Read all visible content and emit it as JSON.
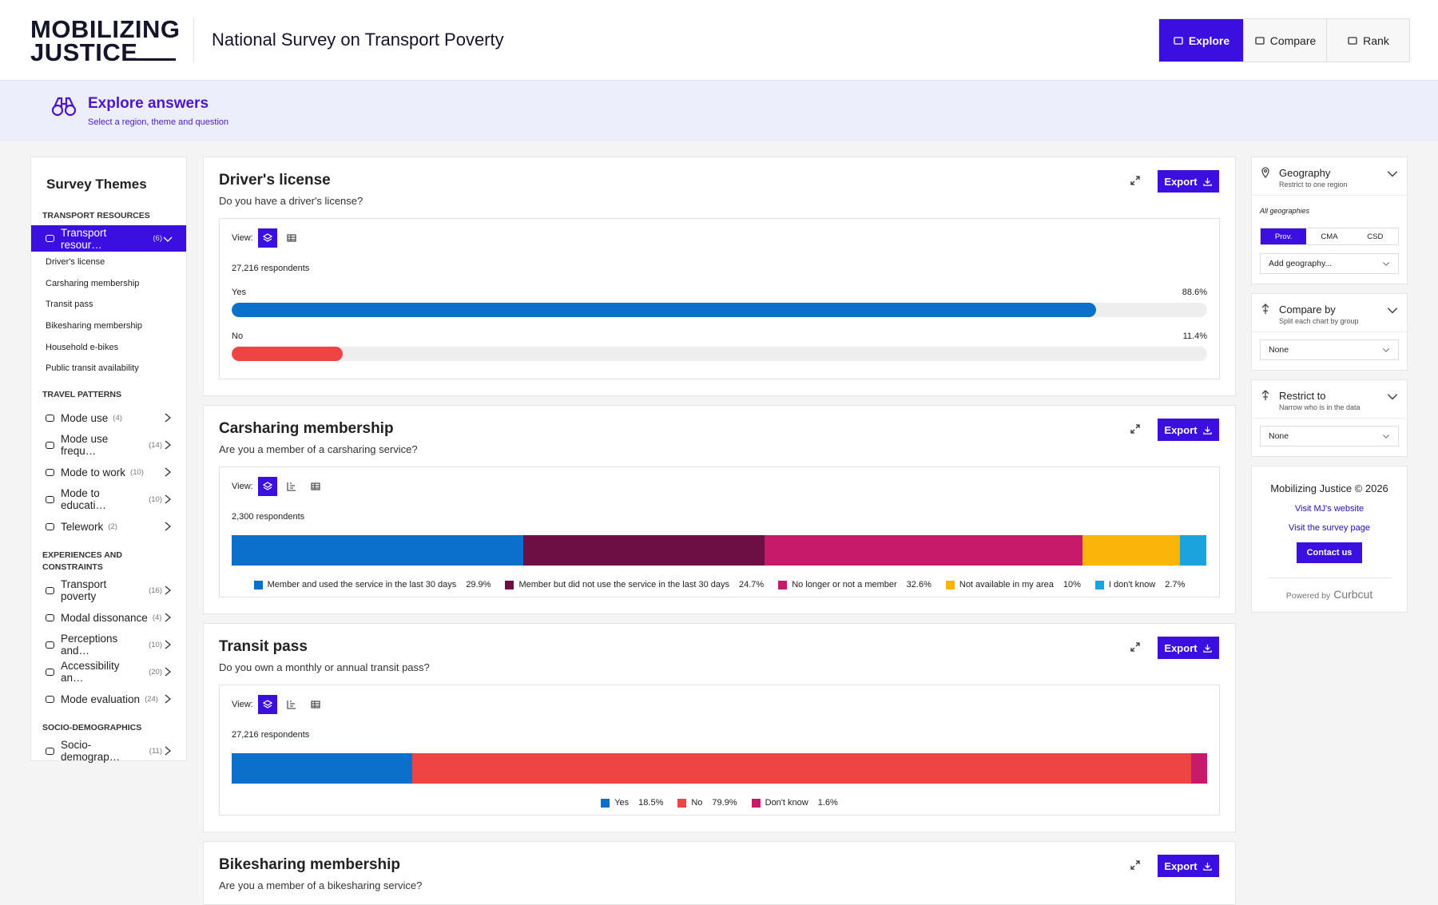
{
  "header": {
    "logo": [
      "MOBILIZING",
      "JUSTICE"
    ],
    "title": "National Survey on Transport Poverty",
    "nav": [
      "Explore",
      "Compare",
      "Rank"
    ]
  },
  "banner": {
    "title": "Explore answers",
    "subtitle": "Select a region, theme and question"
  },
  "sidebar": {
    "title": "Survey Themes",
    "groups": [
      {
        "heading": "TRANSPORT RESOURCES",
        "items": [
          {
            "label": "Transport resour…",
            "count": "(6)"
          }
        ],
        "subitems": [
          "Driver's license",
          "Carsharing membership",
          "Transit pass",
          "Bikesharing membership",
          "Household e-bikes",
          "Public transit availability"
        ]
      },
      {
        "heading": "TRAVEL PATTERNS",
        "items": [
          {
            "label": "Mode use",
            "count": "(4)"
          },
          {
            "label": "Mode use frequ…",
            "count": "(14)"
          },
          {
            "label": "Mode to work",
            "count": "(10)"
          },
          {
            "label": "Mode to educati…",
            "count": "(10)"
          },
          {
            "label": "Telework",
            "count": "(2)"
          }
        ]
      },
      {
        "heading": "EXPERIENCES AND CONSTRAINTS",
        "items": [
          {
            "label": "Transport poverty",
            "count": "(16)"
          },
          {
            "label": "Modal dissonance",
            "count": "(4)"
          },
          {
            "label": "Perceptions and…",
            "count": "(10)"
          },
          {
            "label": "Accessibility an…",
            "count": "(20)"
          },
          {
            "label": "Mode evaluation",
            "count": "(24)"
          }
        ]
      },
      {
        "heading": "SOCIO-DEMOGRAPHICS",
        "items": [
          {
            "label": "Socio-demograp…",
            "count": "(11)"
          }
        ]
      }
    ]
  },
  "card_common": {
    "view_label": "View:",
    "export": "Export"
  },
  "chart_data": [
    {
      "type": "progress",
      "title": "Driver's license",
      "subtitle": "Do you have a driver's license?",
      "note": "27,216 respondents",
      "categories": [
        "Yes",
        "No"
      ],
      "values": [
        88.6,
        11.4
      ],
      "value_labels": [
        "88.6%",
        "11.4%"
      ],
      "colors": [
        "#0b6fcc",
        "#ef4444"
      ],
      "xlim": [
        0,
        100
      ]
    },
    {
      "type": "stacked",
      "title": "Carsharing membership",
      "subtitle": "Are you a member of a carsharing service?",
      "note": "2,300 respondents",
      "categories": [
        "Member and used the service in the last 30 days",
        "Member but did not use the service in the last 30 days",
        "No longer or not a member",
        "Not available in my area",
        "I don't know"
      ],
      "values": [
        29.9,
        24.7,
        32.6,
        10,
        2.7
      ],
      "value_labels": [
        "29.9%",
        "24.7%",
        "32.6%",
        "10%",
        "2.7%"
      ],
      "colors": [
        "#0b6fcc",
        "#6d0f45",
        "#c81a6a",
        "#fbb40a",
        "#1aa3dc"
      ],
      "xlim": [
        0,
        100
      ]
    },
    {
      "type": "stacked",
      "title": "Transit pass",
      "subtitle": "Do you own a monthly or annual transit pass?",
      "note": "27,216 respondents",
      "categories": [
        "Yes",
        "No",
        "Don't know"
      ],
      "values": [
        18.5,
        79.9,
        1.6
      ],
      "value_labels": [
        "18.5%",
        "79.9%",
        "1.6%"
      ],
      "colors": [
        "#0b6fcc",
        "#ef4444",
        "#c81a6a"
      ],
      "xlim": [
        0,
        100
      ]
    },
    {
      "type": "stub",
      "title": "Bikesharing membership",
      "subtitle": "Are you a member of a bikesharing service?"
    }
  ],
  "right_panel": {
    "geography": {
      "title": "Geography",
      "subtitle": "Restrict to one region",
      "note": "All geographies",
      "tabs": [
        "Prov.",
        "CMA",
        "CSD"
      ],
      "select": "Add geography..."
    },
    "compare": {
      "title": "Compare by",
      "subtitle": "Split each chart by group",
      "select": "None"
    },
    "restrict": {
      "title": "Restrict to",
      "subtitle": "Narrow who is in the data",
      "select": "None"
    },
    "footer": {
      "copyright": "Mobilizing Justice © 2026",
      "link1": "Visit MJ's website",
      "link2": "Visit the survey page",
      "button": "Contact us",
      "powered": "Powered by",
      "brand": "Curbcut"
    }
  }
}
